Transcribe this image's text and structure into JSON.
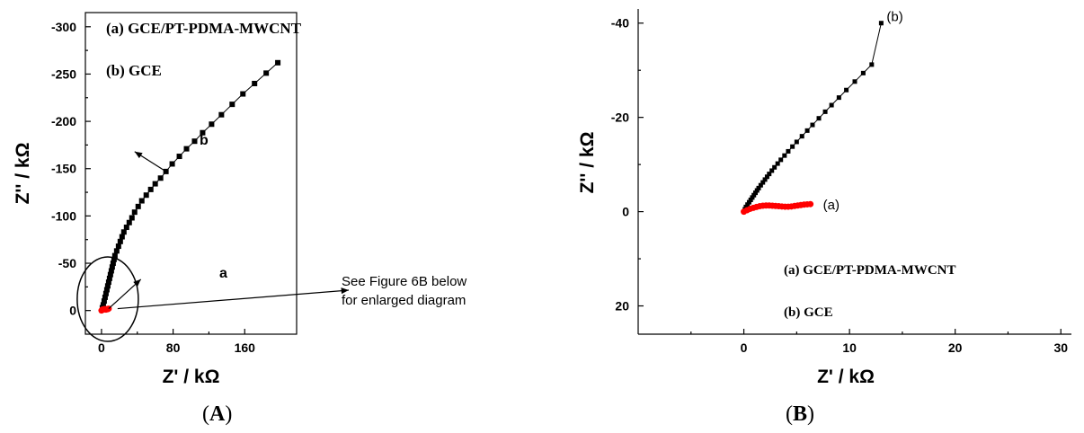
{
  "chart_data": [
    {
      "panel": "(A)",
      "type": "scatter",
      "xlabel": "Z' / kΩ",
      "ylabel": "Z'' / kΩ",
      "xlim": [
        -18,
        218
      ],
      "ylim": [
        25,
        -315
      ],
      "x_ticks": [
        0,
        80,
        160
      ],
      "y_ticks": [
        0,
        -50,
        -100,
        -150,
        -200,
        -250,
        -300
      ],
      "x_tick_labels": [
        "0",
        "80",
        "160"
      ],
      "y_tick_labels": [
        "0",
        "-50",
        "-100",
        "-150",
        "-200",
        "-250",
        "-300"
      ],
      "legend": [
        "(a) GCE/PT-PDMA-MWCNT",
        "(b) GCE"
      ],
      "legend_placement": "top-left",
      "series": [
        {
          "name": "b",
          "color": "#000000",
          "marker": "square",
          "x": [
            1,
            2,
            3,
            4,
            5,
            6,
            7,
            8,
            9,
            10,
            11,
            12,
            13,
            14,
            15,
            17,
            19,
            21,
            23,
            25,
            28,
            31,
            34,
            37,
            41,
            45,
            50,
            55,
            60,
            66,
            72,
            79,
            87,
            95,
            104,
            113,
            123,
            134,
            146,
            158,
            171,
            184,
            197
          ],
          "y": [
            -3,
            -6,
            -10,
            -14,
            -18,
            -22,
            -26,
            -30,
            -34,
            -38,
            -42,
            -46,
            -50,
            -54,
            -58,
            -63,
            -68,
            -73,
            -78,
            -83,
            -88,
            -93,
            -98,
            -104,
            -110,
            -116,
            -122,
            -128,
            -134,
            -140,
            -147,
            -155,
            -163,
            -171,
            -179,
            -188,
            -197,
            -207,
            -218,
            -229,
            -240,
            -251,
            -262
          ]
        },
        {
          "name": "a",
          "color": "#ff0000",
          "marker": "circle",
          "x": [
            0,
            1,
            2,
            3,
            4,
            5,
            6,
            7,
            8
          ],
          "y": [
            0,
            -1,
            -1,
            -1.5,
            -1.5,
            -1,
            -1.5,
            -1.5,
            -2
          ]
        }
      ],
      "annotations": [
        {
          "label": "b"
        },
        {
          "label": "a"
        },
        {
          "text_line1": "See Figure 6B below",
          "text_line2": "for enlarged diagram"
        }
      ]
    },
    {
      "panel": "(B)",
      "type": "scatter",
      "xlabel": "Z' / kΩ",
      "ylabel": "Z'' / kΩ",
      "xlim": [
        -10,
        31
      ],
      "ylim": [
        26,
        -43
      ],
      "x_ticks": [
        0,
        10,
        20,
        30
      ],
      "y_ticks": [
        -40,
        -20,
        0,
        20
      ],
      "x_tick_labels": [
        "0",
        "10",
        "20",
        "30"
      ],
      "y_tick_labels": [
        "-40",
        "-20",
        "0",
        "20"
      ],
      "legend": [
        "(a) GCE/PT-PDMA-MWCNT",
        "(b) GCE"
      ],
      "legend_placement": "bottom-right",
      "series": [
        {
          "name": "(b)",
          "color": "#000000",
          "marker": "square",
          "x": [
            0.1,
            0.2,
            0.35,
            0.5,
            0.65,
            0.8,
            0.95,
            1.1,
            1.25,
            1.4,
            1.6,
            1.8,
            2.0,
            2.2,
            2.4,
            2.65,
            2.9,
            3.2,
            3.5,
            3.85,
            4.2,
            4.6,
            5.0,
            5.5,
            6.0,
            6.5,
            7.1,
            7.7,
            8.3,
            9.0,
            9.7,
            10.5,
            11.3,
            12.1,
            13.0
          ],
          "y": [
            -0.5,
            -1.0,
            -1.5,
            -2.0,
            -2.5,
            -3.0,
            -3.5,
            -4.0,
            -4.5,
            -5.0,
            -5.6,
            -6.2,
            -6.8,
            -7.4,
            -8.0,
            -8.7,
            -9.4,
            -10.2,
            -11.0,
            -11.9,
            -12.8,
            -13.8,
            -14.8,
            -16.0,
            -17.2,
            -18.4,
            -19.8,
            -21.2,
            -22.6,
            -24.2,
            -25.8,
            -27.6,
            -29.4,
            -31.2,
            -40.0
          ]
        },
        {
          "name": "(a)",
          "color": "#ff0000",
          "marker": "circle",
          "x": [
            0,
            0.3,
            0.6,
            0.9,
            1.2,
            1.5,
            1.8,
            2.1,
            2.4,
            2.7,
            3.0,
            3.3,
            3.6,
            3.9,
            4.2,
            4.5,
            4.8,
            5.1,
            5.4,
            5.7,
            6.0,
            6.3
          ],
          "y": [
            0,
            -0.3,
            -0.6,
            -0.8,
            -1.0,
            -1.15,
            -1.25,
            -1.3,
            -1.3,
            -1.25,
            -1.2,
            -1.15,
            -1.1,
            -1.05,
            -1.05,
            -1.1,
            -1.2,
            -1.3,
            -1.4,
            -1.5,
            -1.55,
            -1.6
          ]
        }
      ]
    }
  ],
  "panel_labels": {
    "a_open": "(",
    "a_letter": "A",
    "a_close": ")",
    "b_open": "(",
    "b_letter": "B",
    "b_close": ")"
  }
}
